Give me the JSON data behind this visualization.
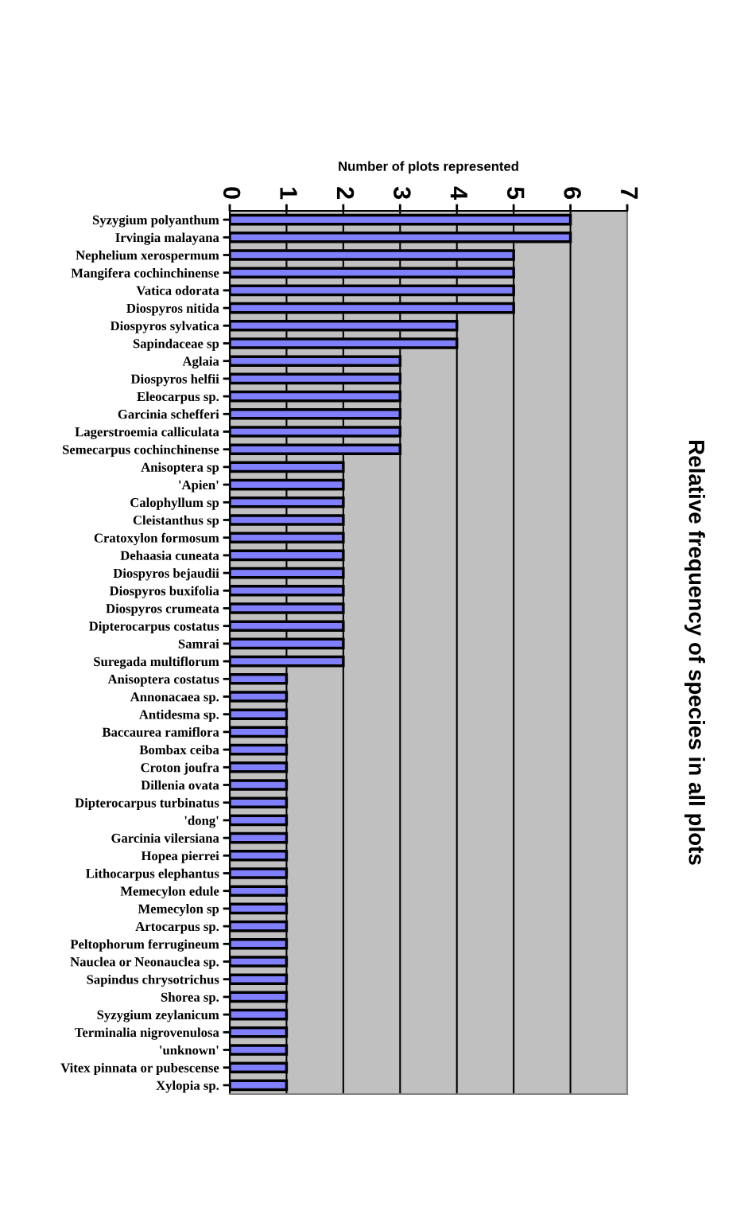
{
  "chart_data": {
    "type": "bar",
    "orientation": "horizontal",
    "title": "Relative frequency of species in all plots",
    "xlabel": "Number of plots represented",
    "categories": [
      "Syzygium polyanthum",
      "Irvingia malayana",
      "Nephelium xerospermum",
      "Mangifera cochinchinense",
      "Vatica odorata",
      "Diospyros nitida",
      "Diospyros sylvatica",
      "Sapindaceae sp",
      "Aglaia",
      "Diospyros helfii",
      "Eleocarpus sp.",
      "Garcinia schefferi",
      "Lagerstroemia calliculata",
      "Semecarpus cochinchinense",
      "Anisoptera sp",
      "'Apien'",
      "Calophyllum sp",
      "Cleistanthus sp",
      "Cratoxylon formosum",
      "Dehaasia cuneata",
      "Diospyros bejaudii",
      "Diospyros buxifolia",
      "Diospyros crumeata",
      "Dipterocarpus costatus",
      "Samrai",
      "Suregada multiflorum",
      "Anisoptera costatus",
      "Annonacaea sp.",
      "Antidesma sp.",
      "Baccaurea ramiflora",
      "Bombax ceiba",
      "Croton joufra",
      "Dillenia ovata",
      "Dipterocarpus turbinatus",
      "'dong'",
      "Garcinia vilersiana",
      "Hopea pierrei",
      "Lithocarpus elephantus",
      "Memecylon edule",
      "Memecylon sp",
      "Artocarpus sp.",
      "Peltophorum ferrugineum",
      "Nauclea or Neonauclea sp.",
      "Sapindus chrysotrichus",
      "Shorea sp.",
      "Syzygium zeylanicum",
      "Terminalia nigrovenulosa",
      "'unknown'",
      "Vitex pinnata or pubescense",
      "Xylopia sp."
    ],
    "values": [
      6,
      6,
      5,
      5,
      5,
      5,
      4,
      4,
      3,
      3,
      3,
      3,
      3,
      3,
      2,
      2,
      2,
      2,
      2,
      2,
      2,
      2,
      2,
      2,
      2,
      2,
      1,
      1,
      1,
      1,
      1,
      1,
      1,
      1,
      1,
      1,
      1,
      1,
      1,
      1,
      1,
      1,
      1,
      1,
      1,
      1,
      1,
      1,
      1,
      1
    ],
    "color": "#8080ff",
    "xlim": [
      0,
      7
    ],
    "xticks": [
      0,
      1,
      2,
      3,
      4,
      5,
      6,
      7
    ],
    "grid": "x",
    "legend": false
  }
}
